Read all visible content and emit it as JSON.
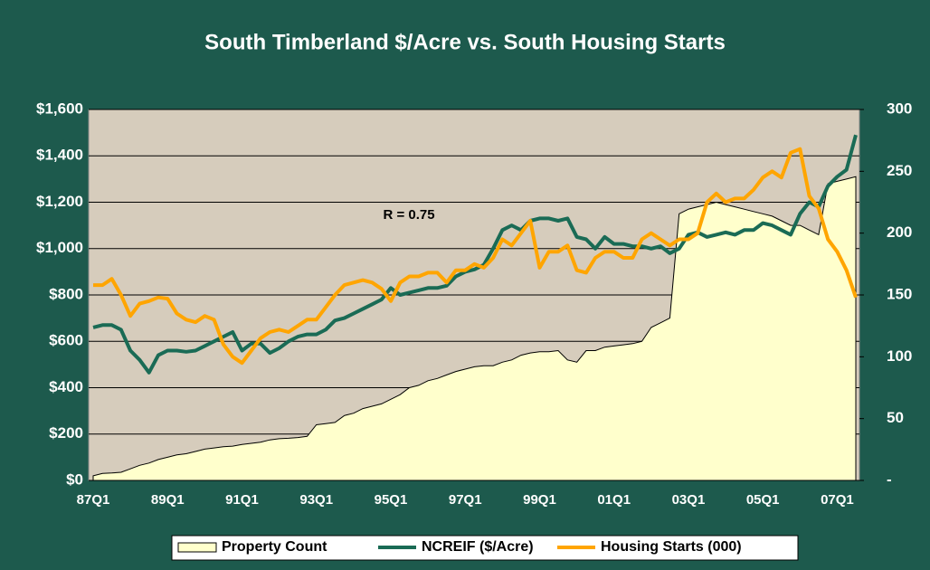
{
  "chart_data": {
    "type": "line",
    "title": "South Timberland $/Acre vs. South Housing Starts",
    "annotations": [
      "R = 0.75"
    ],
    "categories": [
      "87Q1",
      null,
      null,
      null,
      null,
      null,
      null,
      null,
      "89Q1",
      null,
      null,
      null,
      null,
      null,
      null,
      null,
      "91Q1",
      null,
      null,
      null,
      null,
      null,
      null,
      null,
      "93Q1",
      null,
      null,
      null,
      null,
      null,
      null,
      null,
      "95Q1",
      null,
      null,
      null,
      null,
      null,
      null,
      null,
      "97Q1",
      null,
      null,
      null,
      null,
      null,
      null,
      null,
      "99Q1",
      null,
      null,
      null,
      null,
      null,
      null,
      null,
      "01Q1",
      null,
      null,
      null,
      null,
      null,
      null,
      null,
      "03Q1",
      null,
      null,
      null,
      null,
      null,
      null,
      null,
      "05Q1",
      null,
      null,
      null,
      null,
      null,
      null,
      null,
      "07Q1",
      null,
      null
    ],
    "ylim": [
      0,
      1600
    ],
    "yticks": [
      {
        "value": 0,
        "label": "$0"
      },
      {
        "value": 200,
        "label": "$200"
      },
      {
        "value": 400,
        "label": "$400"
      },
      {
        "value": 600,
        "label": "$600"
      },
      {
        "value": 800,
        "label": "$800"
      },
      {
        "value": 1000,
        "label": "$1,000"
      },
      {
        "value": 1200,
        "label": "$1,200"
      },
      {
        "value": 1400,
        "label": "$1,400"
      },
      {
        "value": 1600,
        "label": "$1,600"
      }
    ],
    "y2lim": [
      0,
      300
    ],
    "y2ticks": [
      {
        "value": 0,
        "label": "-"
      },
      50,
      100,
      150,
      200,
      250,
      300
    ],
    "grid": true,
    "legend": "bottom",
    "series": [
      {
        "name": "Property Count",
        "kind": "area",
        "color": "#ffffcc",
        "values": [
          20,
          30,
          32,
          35,
          50,
          65,
          75,
          90,
          100,
          110,
          115,
          125,
          135,
          140,
          145,
          148,
          155,
          160,
          165,
          175,
          180,
          182,
          185,
          190,
          240,
          245,
          250,
          280,
          290,
          310,
          320,
          330,
          350,
          370,
          400,
          410,
          430,
          440,
          455,
          470,
          480,
          490,
          495,
          495,
          510,
          520,
          540,
          550,
          555,
          555,
          560,
          520,
          510,
          560,
          560,
          575,
          580,
          585,
          590,
          600,
          660,
          680,
          700,
          1150,
          1170,
          1180,
          1190,
          1200,
          1190,
          1180,
          1170,
          1160,
          1150,
          1140,
          1120,
          1100,
          1100,
          1080,
          1060,
          1280,
          1290,
          1300,
          1310
        ]
      },
      {
        "name": "NCREIF ($/Acre)",
        "color": "#1a6b55",
        "values": [
          660,
          670,
          670,
          650,
          560,
          520,
          465,
          540,
          560,
          560,
          555,
          560,
          580,
          600,
          620,
          640,
          560,
          590,
          590,
          550,
          570,
          600,
          620,
          630,
          630,
          650,
          690,
          700,
          720,
          740,
          760,
          780,
          830,
          800,
          810,
          820,
          830,
          830,
          840,
          880,
          900,
          910,
          930,
          1000,
          1080,
          1100,
          1080,
          1120,
          1130,
          1130,
          1120,
          1130,
          1050,
          1040,
          1000,
          1050,
          1020,
          1020,
          1010,
          1010,
          1000,
          1010,
          980,
          1000,
          1060,
          1070,
          1050,
          1060,
          1070,
          1060,
          1080,
          1080,
          1110,
          1100,
          1080,
          1060,
          1150,
          1200,
          1180,
          1270,
          1310,
          1340,
          1490
        ]
      },
      {
        "name": "Housing Starts (000)",
        "axis": "y2",
        "color": "#ffa500",
        "values": [
          158,
          158,
          163,
          150,
          133,
          143,
          145,
          148,
          147,
          135,
          130,
          128,
          133,
          130,
          110,
          100,
          95,
          105,
          115,
          120,
          122,
          120,
          125,
          130,
          130,
          140,
          150,
          158,
          160,
          162,
          160,
          155,
          145,
          160,
          165,
          165,
          168,
          168,
          160,
          170,
          170,
          175,
          172,
          180,
          195,
          190,
          200,
          210,
          172,
          185,
          185,
          190,
          170,
          168,
          180,
          185,
          185,
          180,
          180,
          195,
          200,
          195,
          190,
          195,
          195,
          200,
          225,
          232,
          225,
          228,
          228,
          235,
          245,
          250,
          245,
          265,
          268,
          230,
          220,
          195,
          185,
          170,
          148
        ]
      }
    ]
  }
}
